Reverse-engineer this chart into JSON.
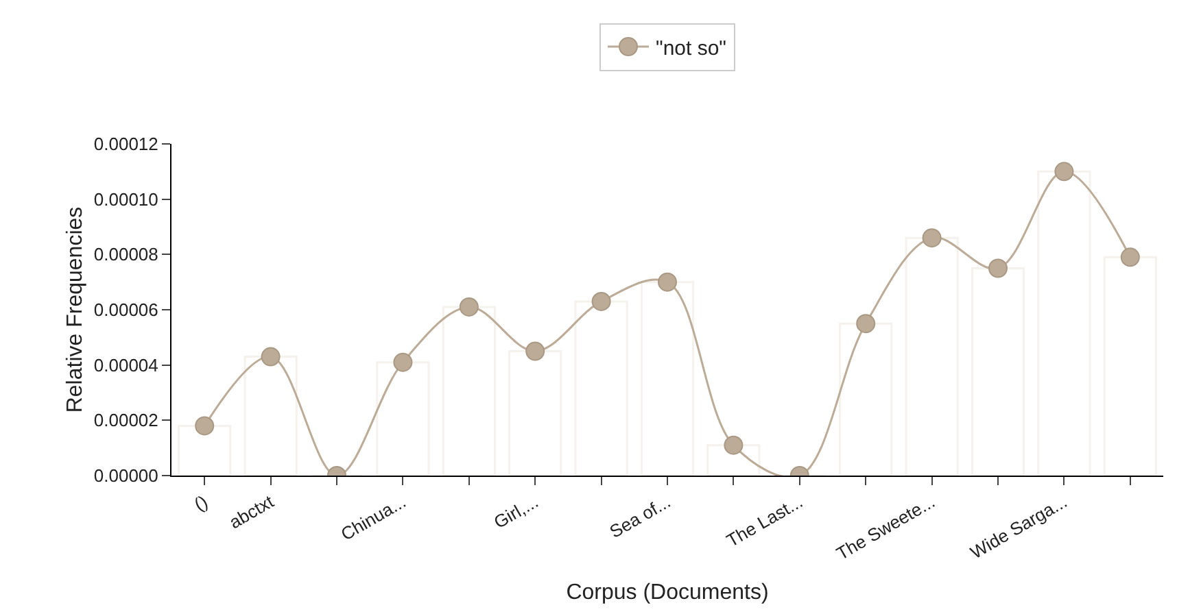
{
  "chart_data": {
    "type": "line",
    "xlabel": "Corpus (Documents)",
    "ylabel": "Relative Frequencies",
    "categories": [
      "()",
      "abctxt",
      null,
      "Chinua...",
      null,
      "Girl,...",
      null,
      "Sea of...",
      null,
      "The Last...",
      null,
      "The Sweete...",
      null,
      "Wide Sarga...",
      null
    ],
    "series": [
      {
        "type": "bar",
        "color": "#f5f1ec",
        "values": [
          1.8e-05,
          4.3e-05,
          0,
          4.1e-05,
          6.1e-05,
          4.5e-05,
          6.3e-05,
          7e-05,
          1.1e-05,
          0,
          5.5e-05,
          8.6e-05,
          7.5e-05,
          0.00011,
          7.9e-05
        ]
      },
      {
        "name": "\"not so\"",
        "color": "#bcab97",
        "values": [
          1.8e-05,
          4.3e-05,
          0,
          4.1e-05,
          6.1e-05,
          4.5e-05,
          6.3e-05,
          7e-05,
          1.1e-05,
          0,
          5.5e-05,
          8.6e-05,
          7.5e-05,
          0.00011,
          7.9e-05
        ]
      }
    ],
    "ylim": [
      0,
      0.00012
    ],
    "yticks": [
      {
        "value": 0,
        "label": "0.00000"
      },
      {
        "value": 2e-05,
        "label": "0.00002"
      },
      {
        "value": 4e-05,
        "label": "0.00004"
      },
      {
        "value": 6e-05,
        "label": "0.00006"
      },
      {
        "value": 8e-05,
        "label": "0.00008"
      },
      {
        "value": 0.0001,
        "label": "0.00010"
      },
      {
        "value": 0.00012,
        "label": "0.00012"
      }
    ],
    "marker": "circle",
    "grid": false,
    "legend": "top"
  }
}
